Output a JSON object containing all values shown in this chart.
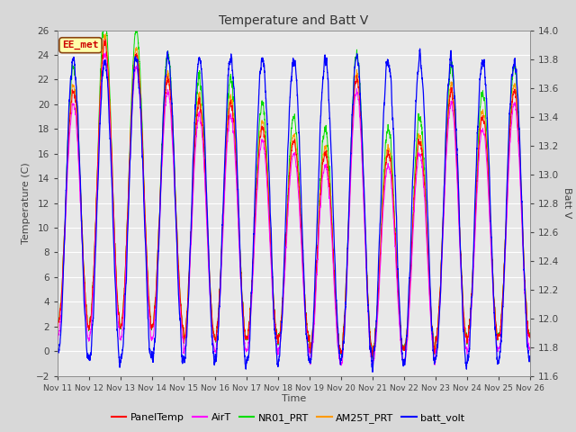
{
  "title": "Temperature and Batt V",
  "xlabel": "Time",
  "ylabel_left": "Temperature (C)",
  "ylabel_right": "Batt V",
  "ylim_left": [
    -2,
    26
  ],
  "ylim_right": [
    11.6,
    14.0
  ],
  "yticks_left": [
    -2,
    0,
    2,
    4,
    6,
    8,
    10,
    12,
    14,
    16,
    18,
    20,
    22,
    24,
    26
  ],
  "yticks_right": [
    11.6,
    11.8,
    12.0,
    12.2,
    12.4,
    12.6,
    12.8,
    13.0,
    13.2,
    13.4,
    13.6,
    13.8,
    14.0
  ],
  "xtick_labels": [
    "Nov 11",
    "Nov 12",
    "Nov 13",
    "Nov 14",
    "Nov 15",
    "Nov 16",
    "Nov 17",
    "Nov 18",
    "Nov 19",
    "Nov 20",
    "Nov 21",
    "Nov 22",
    "Nov 23",
    "Nov 24",
    "Nov 25",
    "Nov 26"
  ],
  "colors": {
    "PanelTemp": "#ff0000",
    "AirT": "#ff00ff",
    "NR01_PRT": "#00dd00",
    "AM25T_PRT": "#ff9900",
    "batt_volt": "#0000ff"
  },
  "legend_labels": [
    "PanelTemp",
    "AirT",
    "NR01_PRT",
    "AM25T_PRT",
    "batt_volt"
  ],
  "inset_label": "EE_met",
  "inset_color": "#cc0000",
  "bg_color": "#e8e8e8",
  "grid_color": "#ffffff",
  "n_days": 15,
  "pts_per_day": 288
}
